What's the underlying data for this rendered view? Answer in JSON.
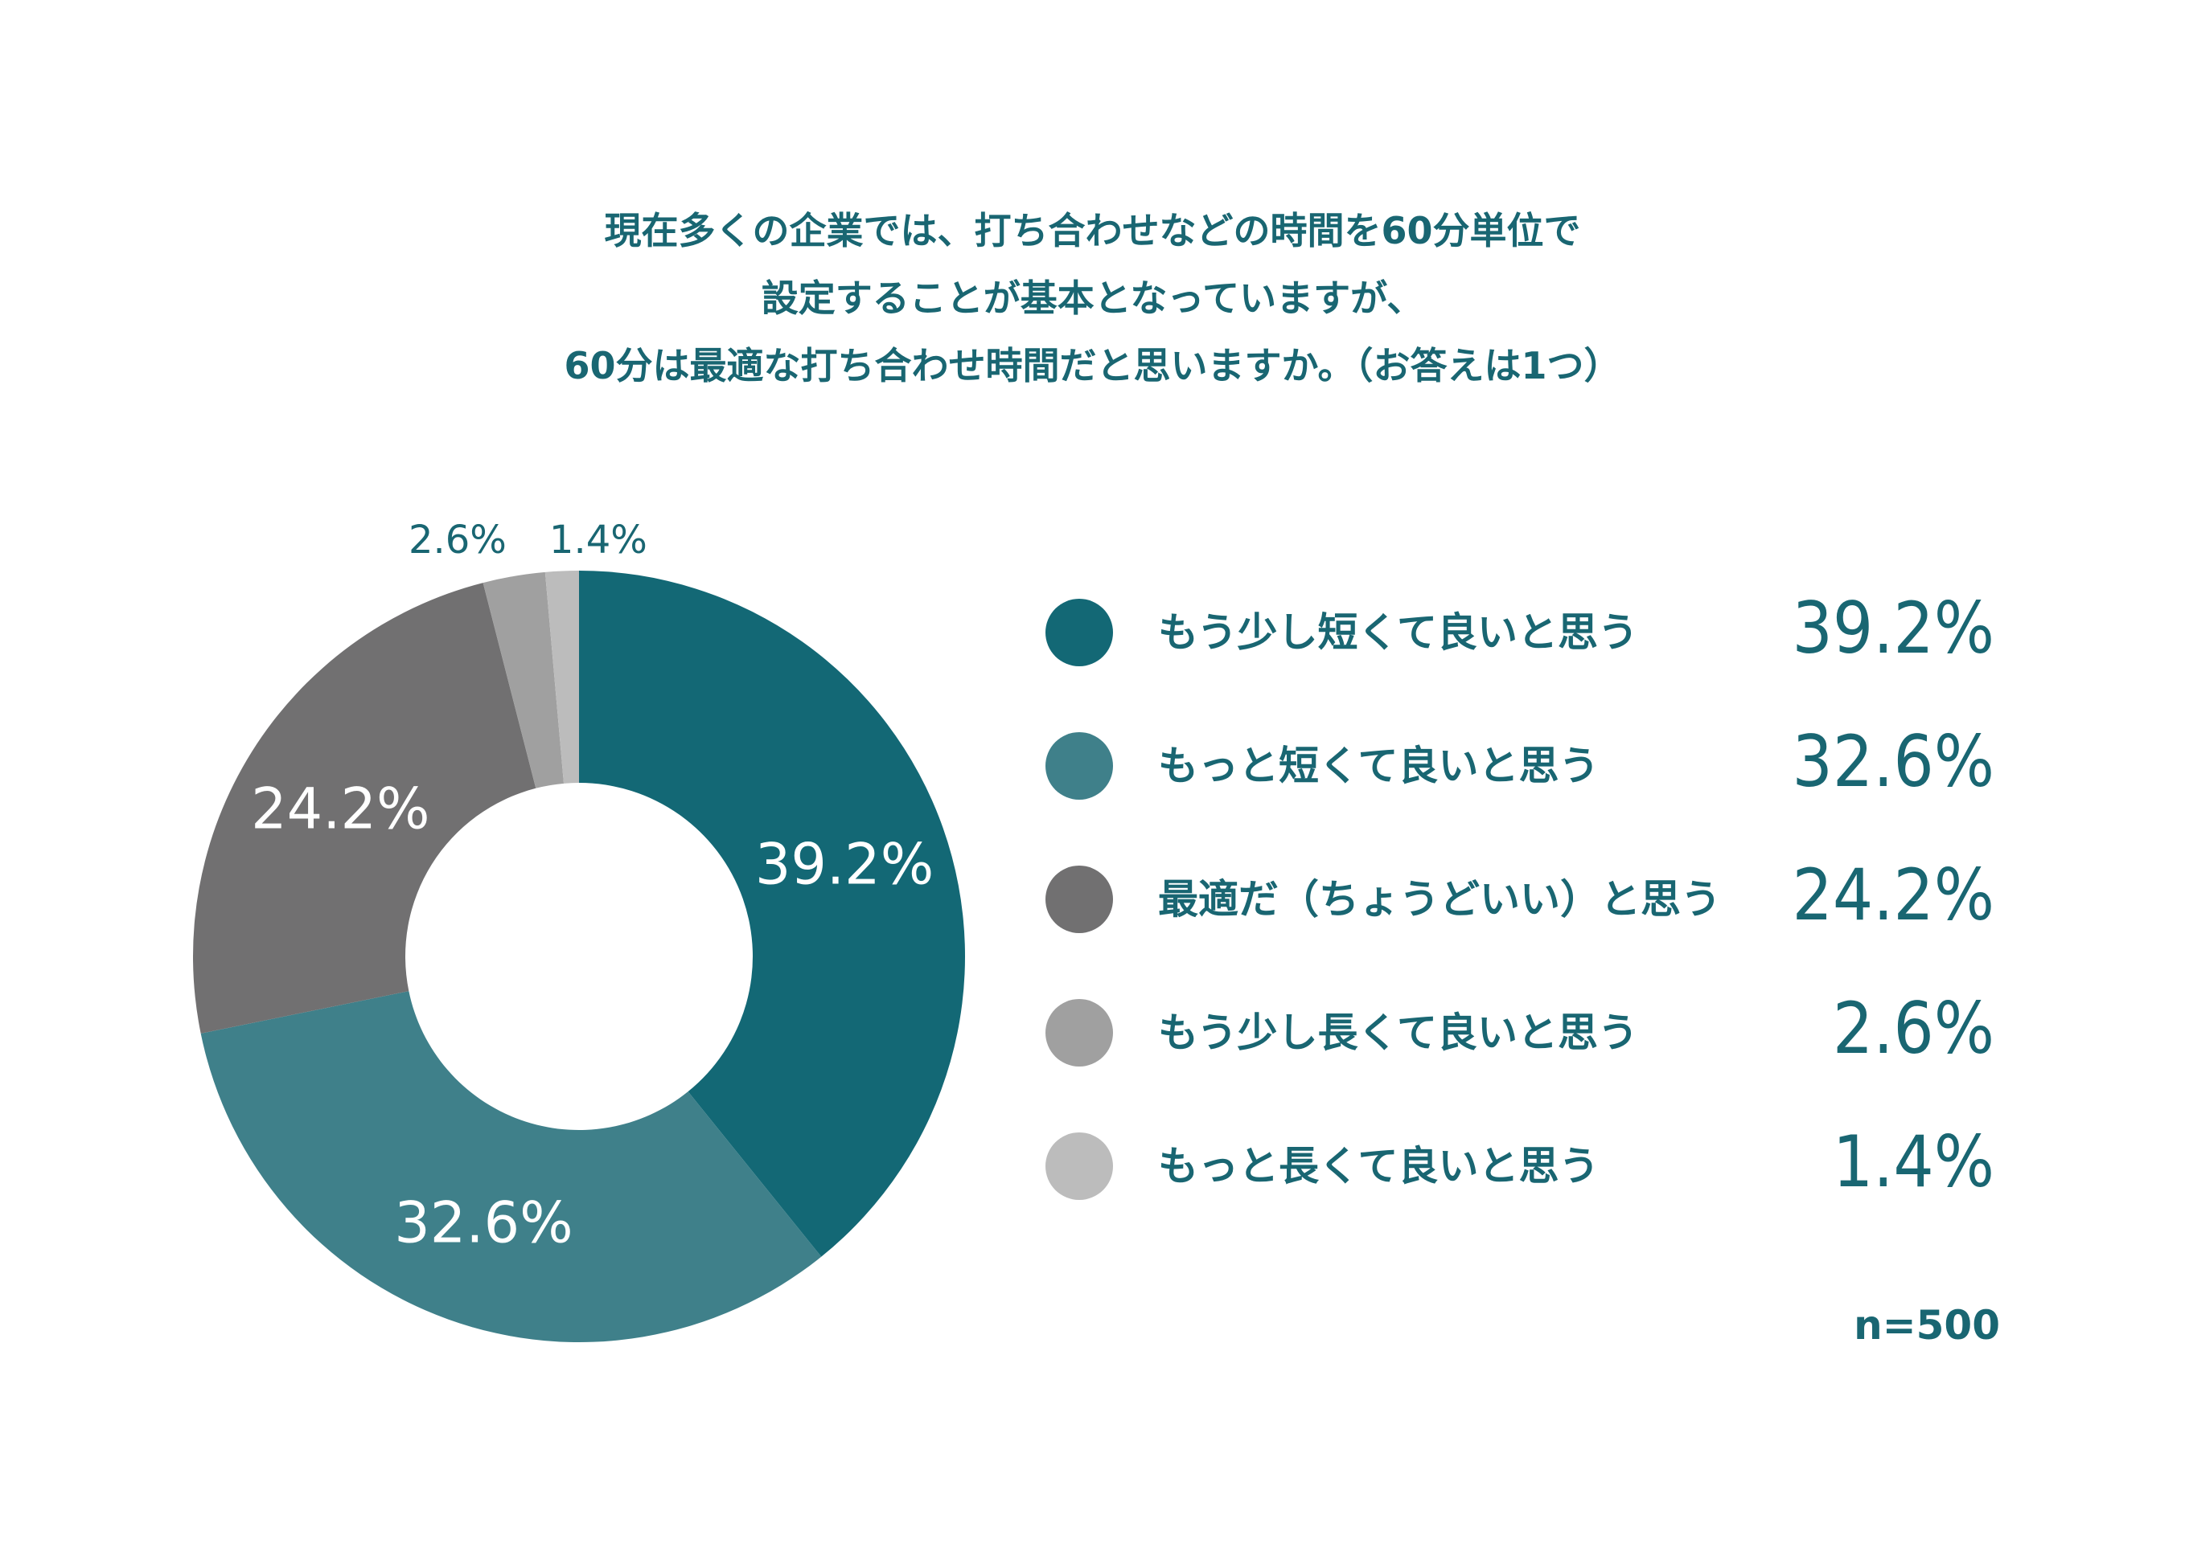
{
  "title_lines": [
    "現在多くの企業では、打ち合わせなどの時間を60分単位で",
    "設定することが基本となっていますが、",
    "60分は最適な打ち合わせ時間だと思いますか。（お答えは1つ）"
  ],
  "sample_size": "n=500",
  "colors": {
    "text": "#196672",
    "series": [
      "#136875",
      "#3f808a",
      "#717071",
      "#a0a0a0",
      "#bcbcbc"
    ]
  },
  "chart_data": {
    "type": "pie",
    "donut": true,
    "categories": [
      "もう少し短くて良いと思う",
      "もっと短くて良いと思う",
      "最適だ（ちょうどいい）と思う",
      "もう少し長くて良いと思う",
      "もっと長くて良いと思う"
    ],
    "values": [
      39.2,
      32.6,
      24.2,
      2.6,
      1.4
    ],
    "labels": [
      "39.2%",
      "32.6%",
      "24.2%",
      "2.6%",
      "1.4%"
    ],
    "legend_position": "right"
  }
}
